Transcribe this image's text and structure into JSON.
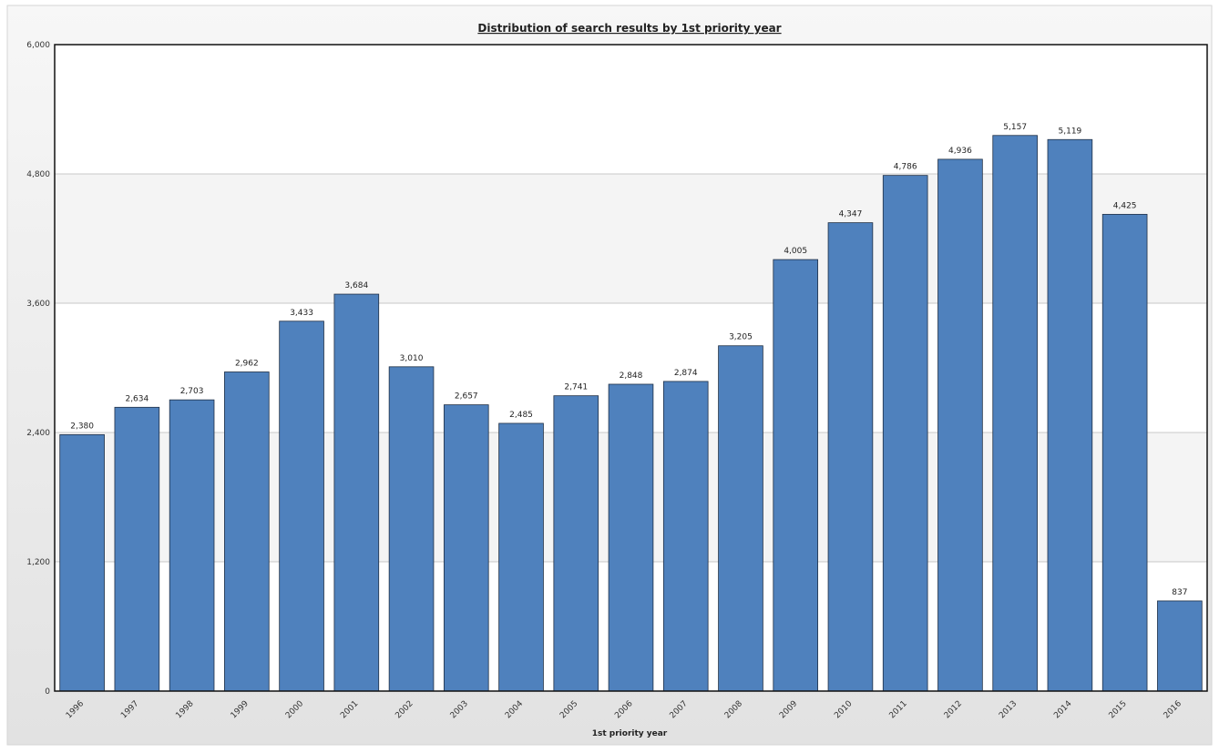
{
  "chart_data": {
    "type": "bar",
    "title": "Distribution of search results by 1st priority year",
    "xlabel": "1st priority year",
    "ylabel": "",
    "ylim": [
      0,
      6000
    ],
    "yticks": [
      0,
      1200,
      2400,
      3600,
      4800,
      6000
    ],
    "ytick_labels": [
      "0",
      "1,200",
      "2,400",
      "3,600",
      "4,800",
      "6,000"
    ],
    "categories": [
      "1996",
      "1997",
      "1998",
      "1999",
      "2000",
      "2001",
      "2002",
      "2003",
      "2004",
      "2005",
      "2006",
      "2007",
      "2008",
      "2009",
      "2010",
      "2011",
      "2012",
      "2013",
      "2014",
      "2015",
      "2016"
    ],
    "values": [
      2380,
      2634,
      2703,
      2962,
      3433,
      3684,
      3010,
      2657,
      2485,
      2741,
      2848,
      2874,
      3205,
      4005,
      4347,
      4786,
      4936,
      5157,
      5119,
      4425,
      837
    ],
    "value_labels": [
      "2,380",
      "2,634",
      "2,703",
      "2,962",
      "3,433",
      "3,684",
      "3,010",
      "2,657",
      "2,485",
      "2,741",
      "2,848",
      "2,874",
      "3,205",
      "4,005",
      "4,347",
      "4,786",
      "4,936",
      "5,157",
      "5,119",
      "4,425",
      "837"
    ],
    "grid": true,
    "legend": "none",
    "colors": {
      "bar_fill": "#4f81bd",
      "bar_stroke": "#1f2f45",
      "plot_band_light": "#ffffff",
      "plot_band_shade": "#f4f4f4",
      "grid_line": "#c8c8c8",
      "frame_bg": "#ececec"
    }
  }
}
